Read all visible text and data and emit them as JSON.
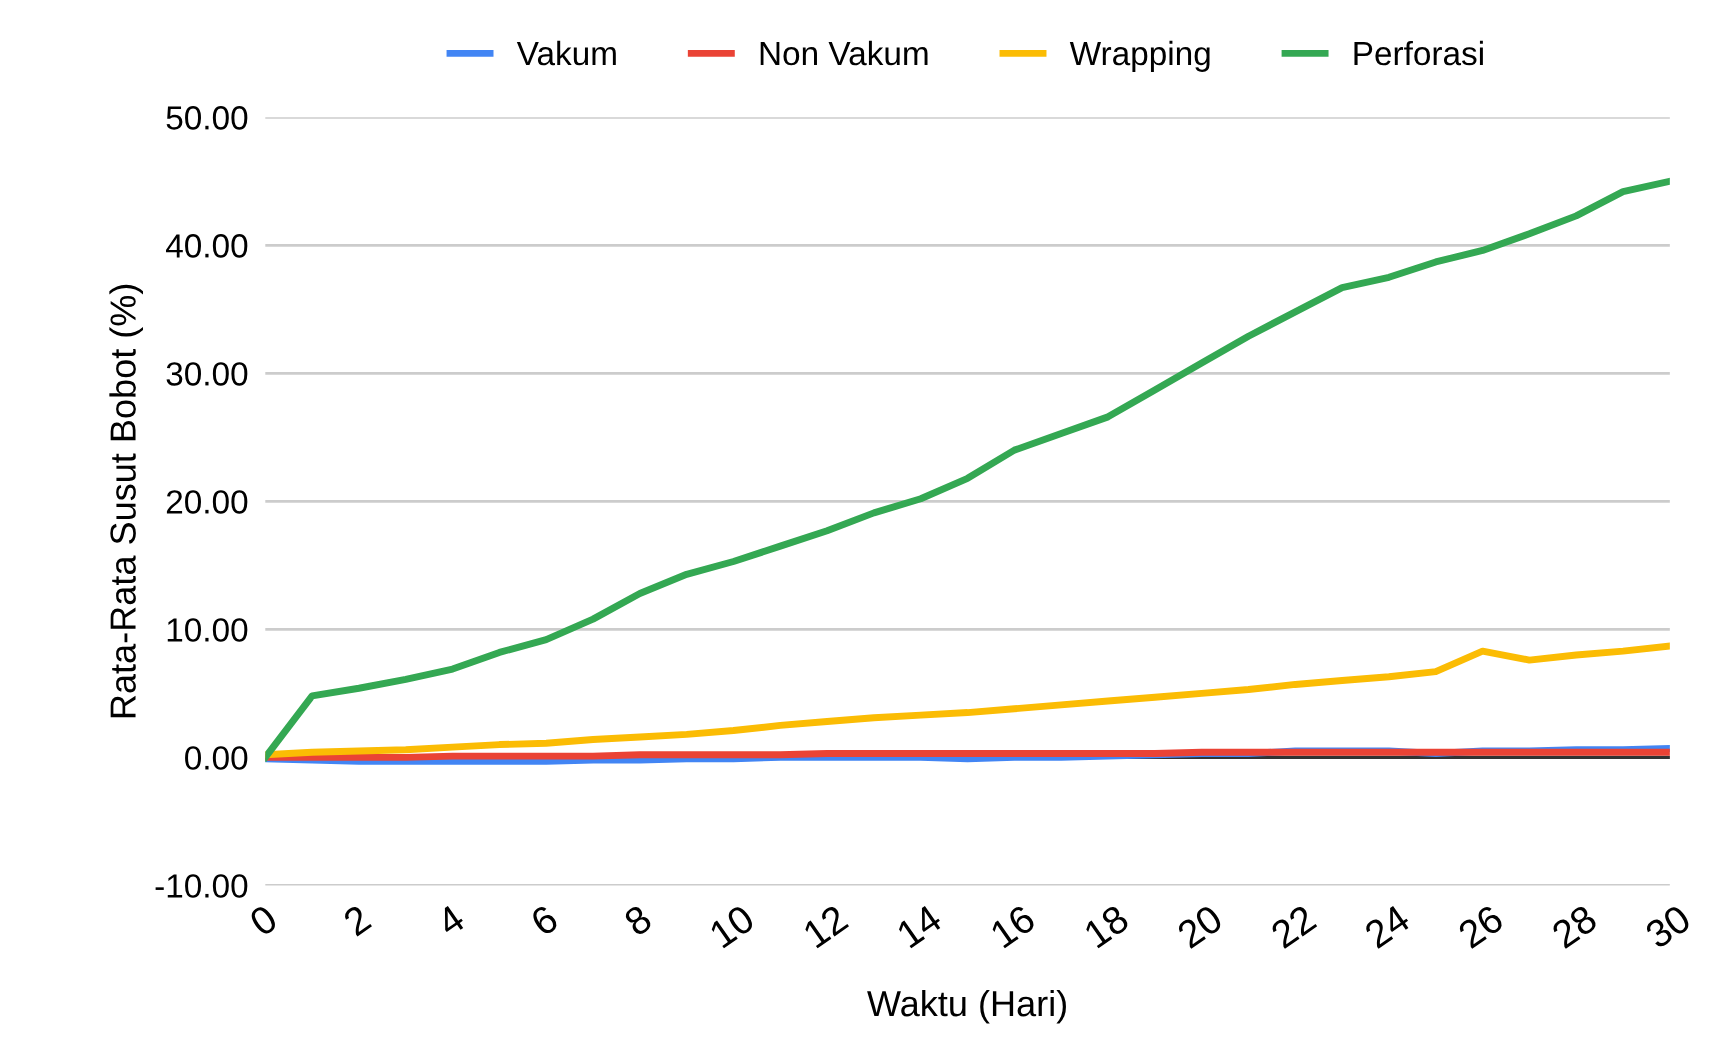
{
  "chart_data": {
    "type": "line",
    "xlabel": "Waktu (Hari)",
    "ylabel": "Rata-Rata Susut Bobot (%)",
    "x": [
      0,
      1,
      2,
      3,
      4,
      5,
      6,
      7,
      8,
      9,
      10,
      11,
      12,
      13,
      14,
      15,
      16,
      17,
      18,
      19,
      20,
      21,
      22,
      23,
      24,
      25,
      26,
      27,
      28,
      29,
      30
    ],
    "series": [
      {
        "name": "Vakum",
        "color": "#4285f4",
        "values": [
          -0.1,
          -0.2,
          -0.3,
          -0.3,
          -0.3,
          -0.3,
          -0.3,
          -0.2,
          -0.2,
          -0.1,
          -0.1,
          0,
          0,
          0,
          0,
          -0.1,
          0,
          0,
          0.1,
          0.2,
          0.3,
          0.3,
          0.5,
          0.5,
          0.5,
          0.3,
          0.5,
          0.5,
          0.6,
          0.6,
          0.7
        ]
      },
      {
        "name": "Non Vakum",
        "color": "#ea4335",
        "values": [
          0,
          0,
          0,
          0,
          0.1,
          0.1,
          0.1,
          0.1,
          0.2,
          0.2,
          0.2,
          0.2,
          0.3,
          0.3,
          0.3,
          0.3,
          0.3,
          0.3,
          0.3,
          0.3,
          0.4,
          0.4,
          0.4,
          0.4,
          0.4,
          0.4,
          0.4,
          0.4,
          0.4,
          0.4,
          0.4
        ]
      },
      {
        "name": "Wrapping",
        "color": "#fbbc04",
        "values": [
          0.2,
          0.4,
          0.5,
          0.6,
          0.8,
          1.0,
          1.1,
          1.4,
          1.6,
          1.8,
          2.1,
          2.5,
          2.8,
          3.1,
          3.3,
          3.5,
          3.8,
          4.1,
          4.4,
          4.7,
          5.0,
          5.3,
          5.7,
          6.0,
          6.3,
          6.7,
          8.3,
          7.6,
          8.0,
          8.3,
          8.7
        ]
      },
      {
        "name": "Perforasi",
        "color": "#34a853",
        "values": [
          0,
          4.8,
          5.4,
          6.1,
          6.9,
          8.2,
          9.2,
          10.8,
          12.8,
          14.3,
          15.3,
          16.5,
          17.7,
          19.1,
          20.2,
          21.8,
          24.0,
          25.3,
          26.6,
          28.7,
          30.8,
          32.9,
          34.8,
          36.7,
          37.5,
          38.7,
          39.6,
          40.9,
          42.3,
          44.2,
          45.0
        ]
      }
    ],
    "xlim": [
      0,
      30
    ],
    "xticks": [
      0,
      2,
      4,
      6,
      8,
      10,
      12,
      14,
      16,
      18,
      20,
      22,
      24,
      26,
      28,
      30
    ],
    "ylim": [
      -10,
      50
    ],
    "yticks": [
      {
        "value": -10,
        "label": "-10.00"
      },
      {
        "value": 0,
        "label": "0.00"
      },
      {
        "value": 10,
        "label": "10.00"
      },
      {
        "value": 20,
        "label": "20.00"
      },
      {
        "value": 30,
        "label": "30.00"
      },
      {
        "value": 40,
        "label": "40.00"
      },
      {
        "value": 50,
        "label": "50.00"
      }
    ],
    "grid": "y",
    "legend": "top",
    "marker": "none",
    "line_style": "solid"
  }
}
